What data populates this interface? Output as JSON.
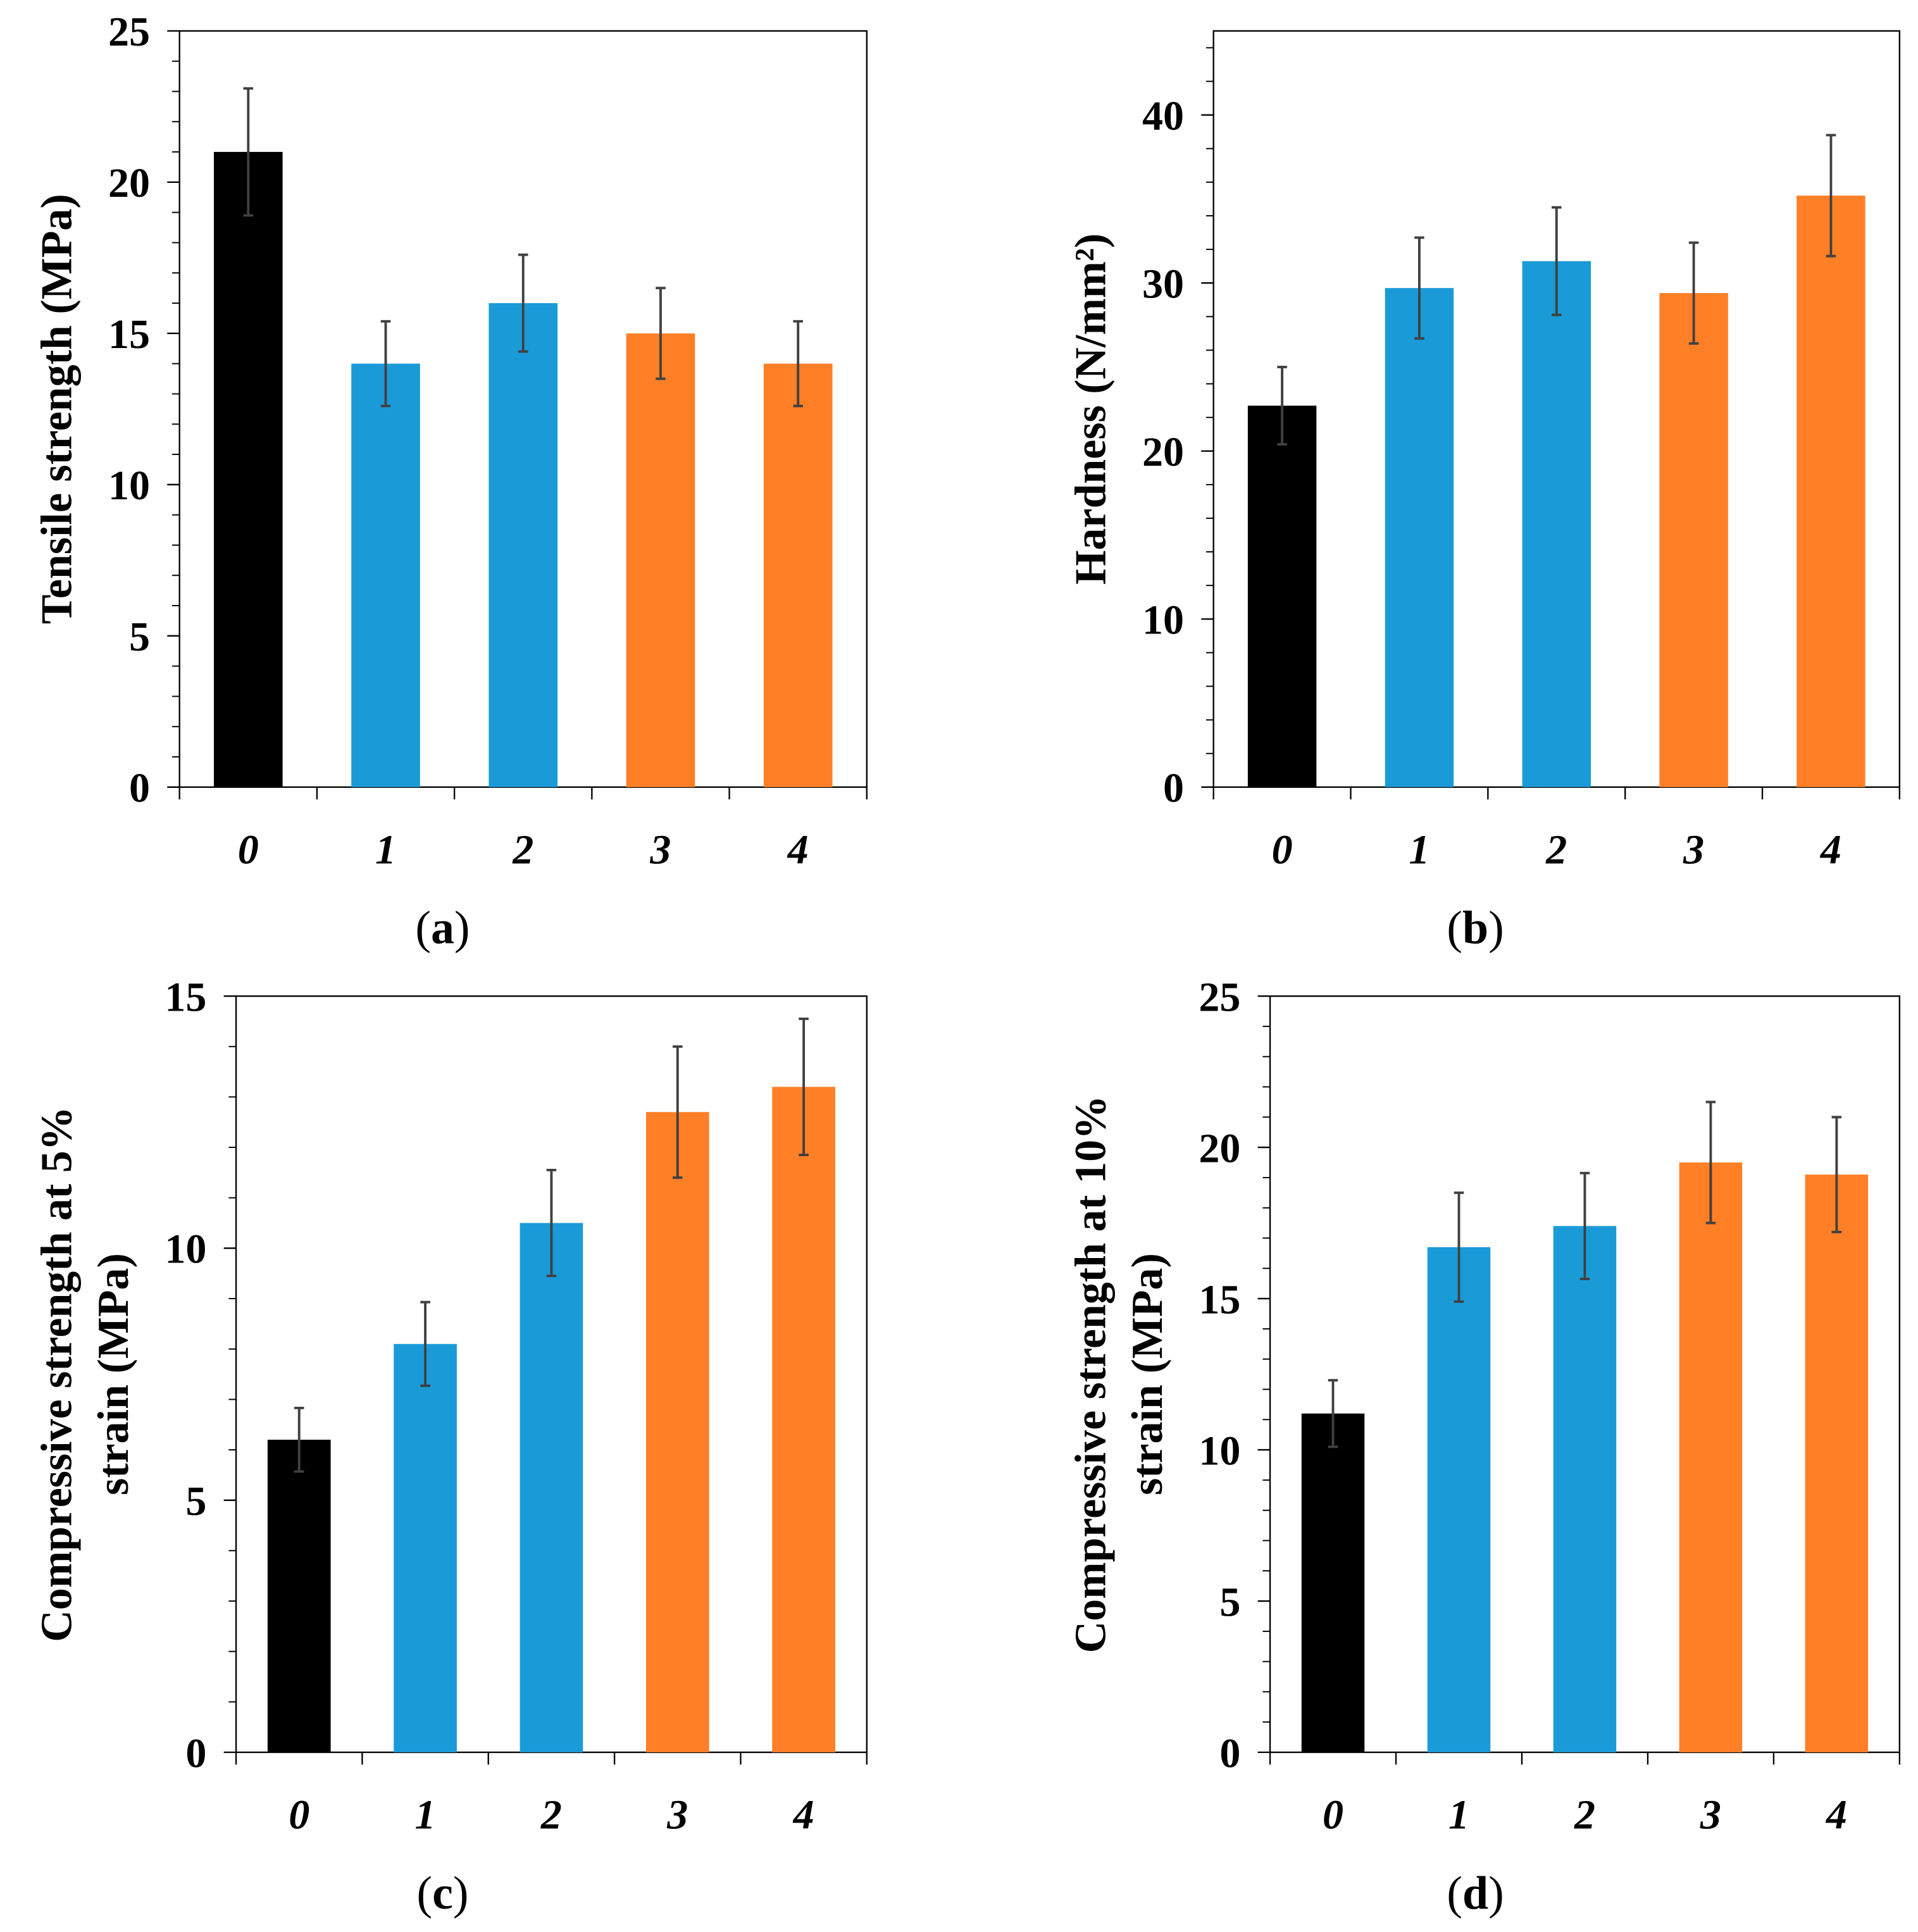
{
  "colors": {
    "control": "#000000",
    "blue": "#1a9bd7",
    "orange": "#ff7f27",
    "error": "#404040",
    "axis": "#000000"
  },
  "chart_data": [
    {
      "type": "bar",
      "panel": "a",
      "caption_open": "(",
      "caption_letter": "a",
      "caption_close": ")",
      "categories": [
        "0",
        "1",
        "2",
        "3",
        "4"
      ],
      "values": [
        21.0,
        14.0,
        16.0,
        15.0,
        14.0
      ],
      "errors": [
        2.1,
        1.4,
        1.6,
        1.5,
        1.4
      ],
      "bar_colors": [
        "control",
        "blue",
        "blue",
        "orange",
        "orange"
      ],
      "ylabel": [
        "Tensile strength (MPa)"
      ],
      "ylim": [
        0,
        25
      ],
      "yticks": [
        0,
        5,
        10,
        15,
        20,
        25
      ],
      "minor_step": 1
    },
    {
      "type": "bar",
      "panel": "b",
      "caption_open": "(",
      "caption_letter": "b",
      "caption_close": ")",
      "categories": [
        "0",
        "1",
        "2",
        "3",
        "4"
      ],
      "values": [
        22.7,
        29.7,
        31.3,
        29.4,
        35.2
      ],
      "errors": [
        2.3,
        3.0,
        3.2,
        3.0,
        3.6
      ],
      "bar_colors": [
        "control",
        "blue",
        "blue",
        "orange",
        "orange"
      ],
      "ylabel": [
        "Hardness (N/mm²)"
      ],
      "ylim": [
        0,
        45
      ],
      "yticks": [
        0,
        10,
        20,
        30,
        40
      ],
      "minor_step": 2
    },
    {
      "type": "bar",
      "panel": "c",
      "caption_open": "(",
      "caption_letter": "c",
      "caption_close": ")",
      "categories": [
        "0",
        "1",
        "2",
        "3",
        "4"
      ],
      "values": [
        6.2,
        8.1,
        10.5,
        12.7,
        13.2
      ],
      "errors": [
        0.63,
        0.83,
        1.05,
        1.3,
        1.35
      ],
      "bar_colors": [
        "control",
        "blue",
        "blue",
        "orange",
        "orange"
      ],
      "ylabel": [
        "Compressive strength at 5%",
        "strain (MPa)"
      ],
      "ylim": [
        0,
        15
      ],
      "yticks": [
        0,
        5,
        10,
        15
      ],
      "minor_step": 1
    },
    {
      "type": "bar",
      "panel": "d",
      "caption_open": "(",
      "caption_letter": "d",
      "caption_close": ")",
      "categories": [
        "0",
        "1",
        "2",
        "3",
        "4"
      ],
      "values": [
        11.2,
        16.7,
        17.4,
        19.5,
        19.1
      ],
      "errors": [
        1.1,
        1.8,
        1.75,
        2.0,
        1.9
      ],
      "bar_colors": [
        "control",
        "blue",
        "blue",
        "orange",
        "orange"
      ],
      "ylabel": [
        "Compressive strength at 10%",
        "strain (MPa)"
      ],
      "ylim": [
        0,
        25
      ],
      "yticks": [
        0,
        5,
        10,
        15,
        20,
        25
      ],
      "minor_step": 1
    }
  ]
}
